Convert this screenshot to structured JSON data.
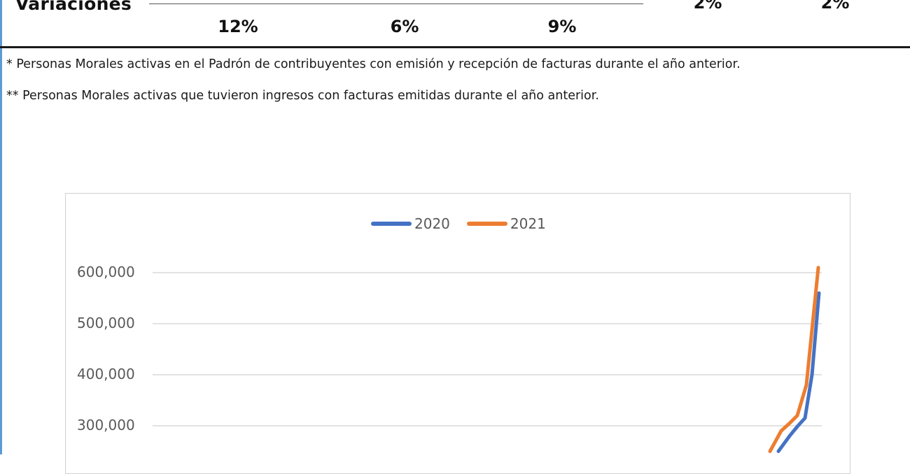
{
  "table": {
    "row_label": "Variaciones",
    "values_upper": [
      "2%",
      "2%"
    ],
    "values_lower": [
      "12%",
      "6%",
      "9%"
    ]
  },
  "footnotes": [
    "* Personas Morales activas en el Padrón de contribuyentes con emisión y recepción de facturas durante el año anterior.",
    "** Personas Morales activas que tuvieron ingresos con facturas emitidas durante el año anterior."
  ],
  "chart_data": {
    "type": "line",
    "title": "",
    "xlabel": "",
    "ylabel": "",
    "yticks": [
      "600,000",
      "500,000",
      "400,000",
      "300,000"
    ],
    "legend_position": "top-center",
    "grid": true,
    "series": [
      {
        "name": "2020",
        "color": "#4472c4",
        "values": [
          250000,
          280000,
          300000,
          315000,
          400000,
          560000
        ]
      },
      {
        "name": "2021",
        "color": "#ed7d31",
        "values": [
          250000,
          290000,
          305000,
          320000,
          380000,
          610000
        ]
      }
    ]
  }
}
